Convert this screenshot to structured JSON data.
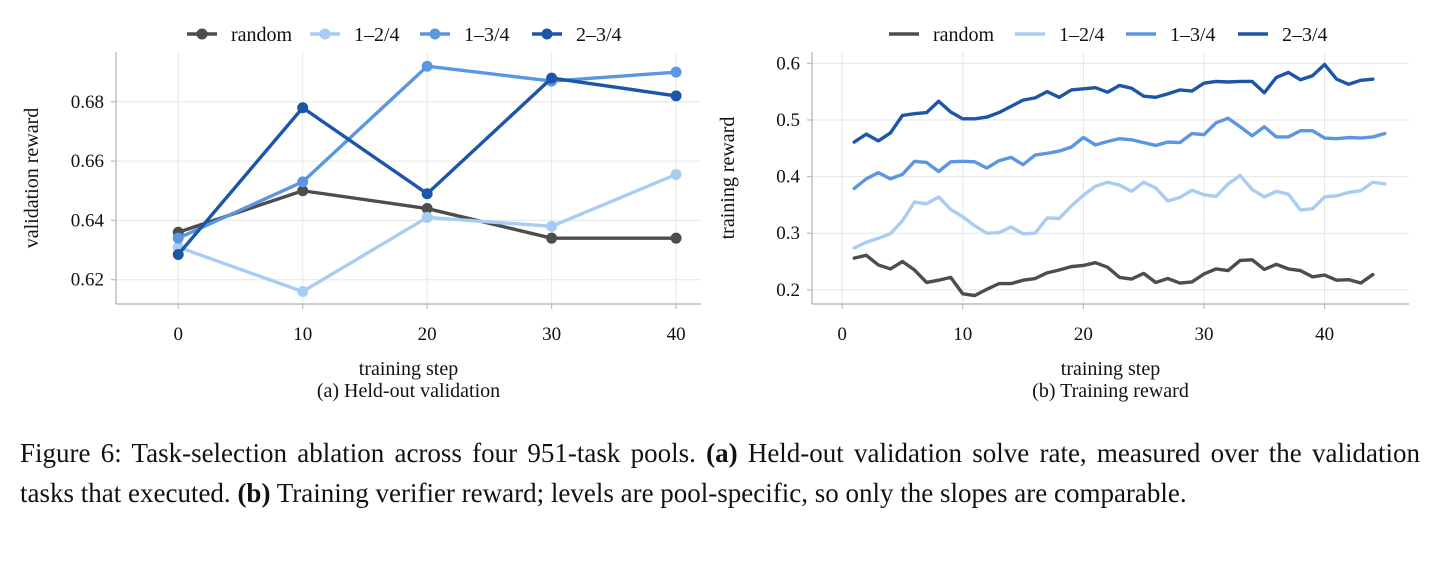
{
  "chart_data": [
    {
      "type": "line",
      "markers": true,
      "subcaption": "(a) Held-out validation",
      "xlabel": "training step",
      "ylabel": "validation reward",
      "xlim": [
        -5,
        42
      ],
      "ylim": [
        0.6118,
        0.6968
      ],
      "xticks": [
        0,
        10,
        20,
        30,
        40
      ],
      "yticks": [
        0.62,
        0.64,
        0.66,
        0.68
      ],
      "ytick_labels": [
        "0.62",
        "0.64",
        "0.66",
        "0.68"
      ],
      "grid": true,
      "legend": "top-center, above plot",
      "x": [
        0,
        10,
        20,
        30,
        40
      ],
      "series": [
        {
          "name": "random",
          "color": "#4d4d4d",
          "values": [
            0.636,
            0.65,
            0.644,
            0.634,
            0.634
          ]
        },
        {
          "name": "1–2/4",
          "color": "#a8ccf2",
          "values": [
            0.631,
            0.616,
            0.641,
            0.638,
            0.6555
          ]
        },
        {
          "name": "1–3/4",
          "color": "#5b97e0",
          "values": [
            0.634,
            0.653,
            0.692,
            0.687,
            0.69
          ]
        },
        {
          "name": "2–3/4",
          "color": "#1c56a8",
          "values": [
            0.6285,
            0.678,
            0.649,
            0.688,
            0.682
          ]
        }
      ]
    },
    {
      "type": "line",
      "markers": false,
      "subcaption": "(b) Training reward",
      "xlabel": "training step",
      "ylabel": "training reward",
      "xlim": [
        -2.5,
        47
      ],
      "ylim": [
        0.175,
        0.62
      ],
      "xticks": [
        0,
        10,
        20,
        30,
        40
      ],
      "yticks": [
        0.2,
        0.3,
        0.4,
        0.5,
        0.6
      ],
      "ytick_labels": [
        "0.2",
        "0.3",
        "0.4",
        "0.5",
        "0.6"
      ],
      "grid": true,
      "legend": "top-center, above plot",
      "x": [
        1,
        2,
        3,
        4,
        5,
        6,
        7,
        8,
        9,
        10,
        11,
        12,
        13,
        14,
        15,
        16,
        17,
        18,
        19,
        20,
        21,
        22,
        23,
        24,
        25,
        26,
        27,
        28,
        29,
        30,
        31,
        32,
        33,
        34,
        35,
        36,
        37,
        38,
        39,
        40,
        41,
        42,
        43,
        44,
        45
      ],
      "series": [
        {
          "name": "random",
          "color": "#4d4d4d",
          "values": [
            0.256,
            0.261,
            0.244,
            0.237,
            0.25,
            0.235,
            0.213,
            0.217,
            0.222,
            0.193,
            0.19,
            0.201,
            0.211,
            0.211,
            0.217,
            0.22,
            0.23,
            0.235,
            0.241,
            0.243,
            0.248,
            0.24,
            0.222,
            0.219,
            0.229,
            0.213,
            0.22,
            0.212,
            0.214,
            0.228,
            0.237,
            0.234,
            0.252,
            0.253,
            0.236,
            0.245,
            0.237,
            0.234,
            0.223,
            0.226,
            0.217,
            0.218,
            0.212,
            0.227,
            null
          ]
        },
        {
          "name": "1–2/4",
          "color": "#a8ccf2",
          "values": [
            0.274,
            0.284,
            0.291,
            0.299,
            0.322,
            0.355,
            0.352,
            0.364,
            0.342,
            0.329,
            0.313,
            0.3,
            0.301,
            0.311,
            0.299,
            0.3,
            0.327,
            0.326,
            0.348,
            0.367,
            0.383,
            0.39,
            0.385,
            0.374,
            0.39,
            0.38,
            0.357,
            0.363,
            0.376,
            0.368,
            0.365,
            0.387,
            0.402,
            0.377,
            0.364,
            0.374,
            0.369,
            0.341,
            0.343,
            0.364,
            0.366,
            0.372,
            0.375,
            0.39,
            0.387
          ]
        },
        {
          "name": "1–3/4",
          "color": "#5b97e0",
          "values": [
            0.379,
            0.396,
            0.407,
            0.396,
            0.404,
            0.427,
            0.425,
            0.409,
            0.426,
            0.427,
            0.426,
            0.415,
            0.428,
            0.434,
            0.421,
            0.438,
            0.441,
            0.445,
            0.452,
            0.469,
            0.456,
            0.462,
            0.467,
            0.465,
            0.46,
            0.455,
            0.461,
            0.46,
            0.476,
            0.474,
            0.495,
            0.503,
            0.488,
            0.472,
            0.488,
            0.47,
            0.47,
            0.481,
            0.481,
            0.468,
            0.467,
            0.469,
            0.468,
            0.47,
            0.476
          ]
        },
        {
          "name": "2–3/4",
          "color": "#1c56a8",
          "values": [
            0.461,
            0.475,
            0.463,
            0.477,
            0.508,
            0.511,
            0.513,
            0.533,
            0.514,
            0.502,
            0.502,
            0.505,
            0.513,
            0.524,
            0.535,
            0.539,
            0.55,
            0.54,
            0.553,
            0.555,
            0.557,
            0.549,
            0.561,
            0.556,
            0.542,
            0.54,
            0.546,
            0.553,
            0.551,
            0.565,
            0.568,
            0.567,
            0.568,
            0.568,
            0.548,
            0.575,
            0.584,
            0.571,
            0.578,
            0.598,
            0.572,
            0.563,
            0.57,
            0.572,
            null
          ]
        }
      ]
    }
  ],
  "caption": {
    "lead": "Figure 6: Task-selection ablation across four 951-task pools.",
    "part_a_label": "(a)",
    "part_a_text": "Held-out validation solve rate, measured over the validation tasks that executed.",
    "part_b_label": "(b)",
    "part_b_text": "Training verifier reward; levels are pool-specific, so only the slopes are comparable."
  }
}
